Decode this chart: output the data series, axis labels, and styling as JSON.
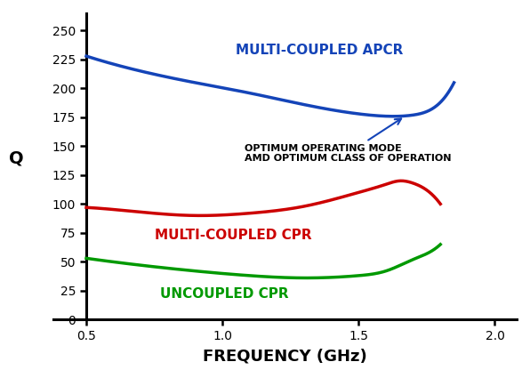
{
  "xlabel": "FREQUENCY (GHz)",
  "ylabel": "Q",
  "xlim": [
    0.5,
    2.05
  ],
  "ylim": [
    0,
    265
  ],
  "yticks": [
    0,
    25,
    50,
    75,
    100,
    125,
    150,
    175,
    200,
    225,
    250
  ],
  "xticks": [
    0.5,
    1.0,
    1.5,
    2.0
  ],
  "xtick_labels": [
    "0.5",
    "1.0",
    "1.5",
    "2.0"
  ],
  "blue_color": "#1444b8",
  "red_color": "#cc0000",
  "green_color": "#009900",
  "annotation_text": "OPTIMUM OPERATING MODE\nAMD OPTIMUM CLASS OF OPERATION",
  "label_apcr": "MULTI-COUPLED APCR",
  "label_cpr": "MULTI-COUPLED CPR",
  "label_uncoupled": "UNCOUPLED CPR",
  "background_color": "#ffffff",
  "blue_x": [
    0.5,
    0.7,
    0.9,
    1.1,
    1.3,
    1.5,
    1.6,
    1.7,
    1.75,
    1.8,
    1.85
  ],
  "blue_y": [
    228,
    215,
    205,
    196,
    186,
    178,
    176,
    177,
    180,
    188,
    205
  ],
  "red_x": [
    0.5,
    0.7,
    0.9,
    1.1,
    1.3,
    1.5,
    1.6,
    1.65,
    1.7,
    1.75,
    1.8
  ],
  "red_y": [
    97,
    93,
    90,
    92,
    98,
    110,
    117,
    120,
    118,
    112,
    100
  ],
  "green_x": [
    0.5,
    0.7,
    0.9,
    1.1,
    1.3,
    1.5,
    1.6,
    1.7,
    1.75,
    1.8
  ],
  "green_y": [
    53,
    47,
    42,
    38,
    36,
    38,
    42,
    52,
    57,
    65
  ]
}
